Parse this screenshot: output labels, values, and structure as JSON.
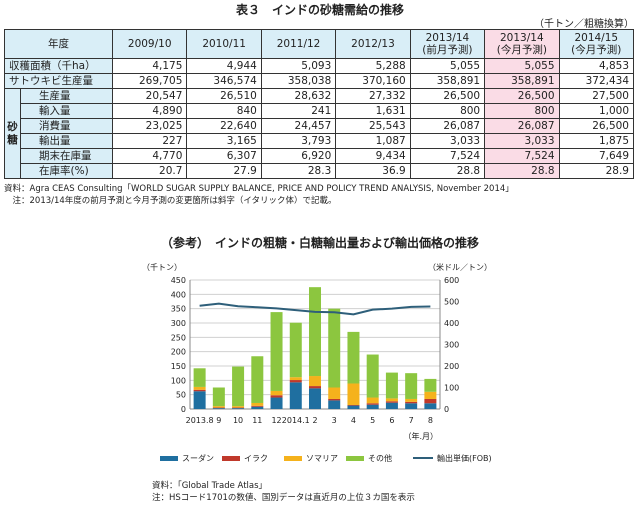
{
  "title": "表３　インドの砂糖需給の推移",
  "unit": "（千トン／粗糖換算）",
  "table": {
    "header_year": "年度",
    "columns": [
      {
        "line1": "2009/10",
        "line2": ""
      },
      {
        "line1": "2010/11",
        "line2": ""
      },
      {
        "line1": "2011/12",
        "line2": ""
      },
      {
        "line1": "2012/13",
        "line2": ""
      },
      {
        "line1": "2013/14",
        "line2": "(前月予測)"
      },
      {
        "line1": "2013/14",
        "line2": "(今月予測)"
      },
      {
        "line1": "2014/15",
        "line2": "(今月予測)"
      }
    ],
    "top_rows": [
      {
        "label": "収穫面積（千ha）",
        "values": [
          "4,175",
          "4,944",
          "5,093",
          "5,288",
          "5,055",
          "5,055",
          "4,853"
        ]
      },
      {
        "label": "サトウキビ生産量",
        "values": [
          "269,705",
          "346,574",
          "358,038",
          "370,160",
          "358,891",
          "358,891",
          "372,434"
        ]
      }
    ],
    "group_label": "砂糖",
    "group_rows": [
      {
        "label": "生産量",
        "values": [
          "20,547",
          "26,510",
          "28,632",
          "27,332",
          "26,500",
          "26,500",
          "27,500"
        ]
      },
      {
        "label": "輸入量",
        "values": [
          "4,890",
          "840",
          "241",
          "1,631",
          "800",
          "800",
          "1,000"
        ]
      },
      {
        "label": "消費量",
        "values": [
          "23,025",
          "22,640",
          "24,457",
          "25,543",
          "26,087",
          "26,087",
          "26,500"
        ]
      },
      {
        "label": "輸出量",
        "values": [
          "227",
          "3,165",
          "3,793",
          "1,087",
          "3,033",
          "3,033",
          "1,875"
        ]
      },
      {
        "label": "期末在庫量",
        "values": [
          "4,770",
          "6,307",
          "6,920",
          "9,434",
          "7,524",
          "7,524",
          "7,649"
        ]
      },
      {
        "label": "在庫率(%)",
        "values": [
          "20.7",
          "27.9",
          "28.3",
          "36.9",
          "28.8",
          "28.8",
          "28.9"
        ]
      }
    ],
    "highlight_color": "#fadce6",
    "header_color": "#d9eef7"
  },
  "notes": {
    "source": "資料：Agra CEAS Consulting「WORLD SUGAR SUPPLY BALANCE, PRICE AND POLICY TREND ANALYSIS, November 2014」",
    "note": "　注：2013/14年度の前月予測と今月予測の変更箇所は斜字（イタリック体）で記載。"
  },
  "subtitle": "（参考）　インドの粗糖・白糖輸出量および輸出価格の推移",
  "chart_data": {
    "type": "bar",
    "stacked": true,
    "left_unit": "（千トン）",
    "right_unit": "（米ドル／トン）",
    "x_unit": "（年.月）",
    "categories": [
      "2013.8",
      "9",
      "10",
      "11",
      "12",
      "2014.1",
      "2",
      "3",
      "4",
      "5",
      "6",
      "7",
      "8"
    ],
    "ylim": [
      0,
      450
    ],
    "yticks": [
      0,
      50,
      100,
      150,
      200,
      250,
      300,
      350,
      400,
      450
    ],
    "y2lim": [
      0,
      600
    ],
    "y2ticks": [
      0,
      100,
      200,
      300,
      400,
      500,
      600
    ],
    "grid": true,
    "legend_position": "bottom",
    "series": [
      {
        "name": "スーダン",
        "color": "#1f6fa0",
        "values": [
          62,
          3,
          3,
          8,
          40,
          93,
          72,
          30,
          12,
          15,
          22,
          20,
          20
        ]
      },
      {
        "name": "イラク",
        "color": "#c0392b",
        "values": [
          5,
          2,
          2,
          3,
          8,
          8,
          8,
          5,
          2,
          5,
          5,
          5,
          15
        ]
      },
      {
        "name": "ソマリア",
        "color": "#f5b21c",
        "values": [
          10,
          5,
          5,
          10,
          15,
          10,
          35,
          40,
          75,
          20,
          10,
          10,
          25
        ]
      },
      {
        "name": "その他",
        "color": "#8cc63f",
        "values": [
          65,
          65,
          138,
          163,
          275,
          190,
          310,
          275,
          180,
          150,
          90,
          90,
          45
        ]
      }
    ],
    "line": {
      "name": "輸出単価(FOB)",
      "color": "#2e5f7a",
      "values": [
        480,
        490,
        478,
        473,
        468,
        460,
        452,
        450,
        440,
        462,
        467,
        475,
        477
      ]
    }
  },
  "footer": {
    "source": "資料：「Global Trade Atlas」",
    "note": "注：HSコード1701の数値、国別データは直近月の上位３カ国を表示"
  }
}
